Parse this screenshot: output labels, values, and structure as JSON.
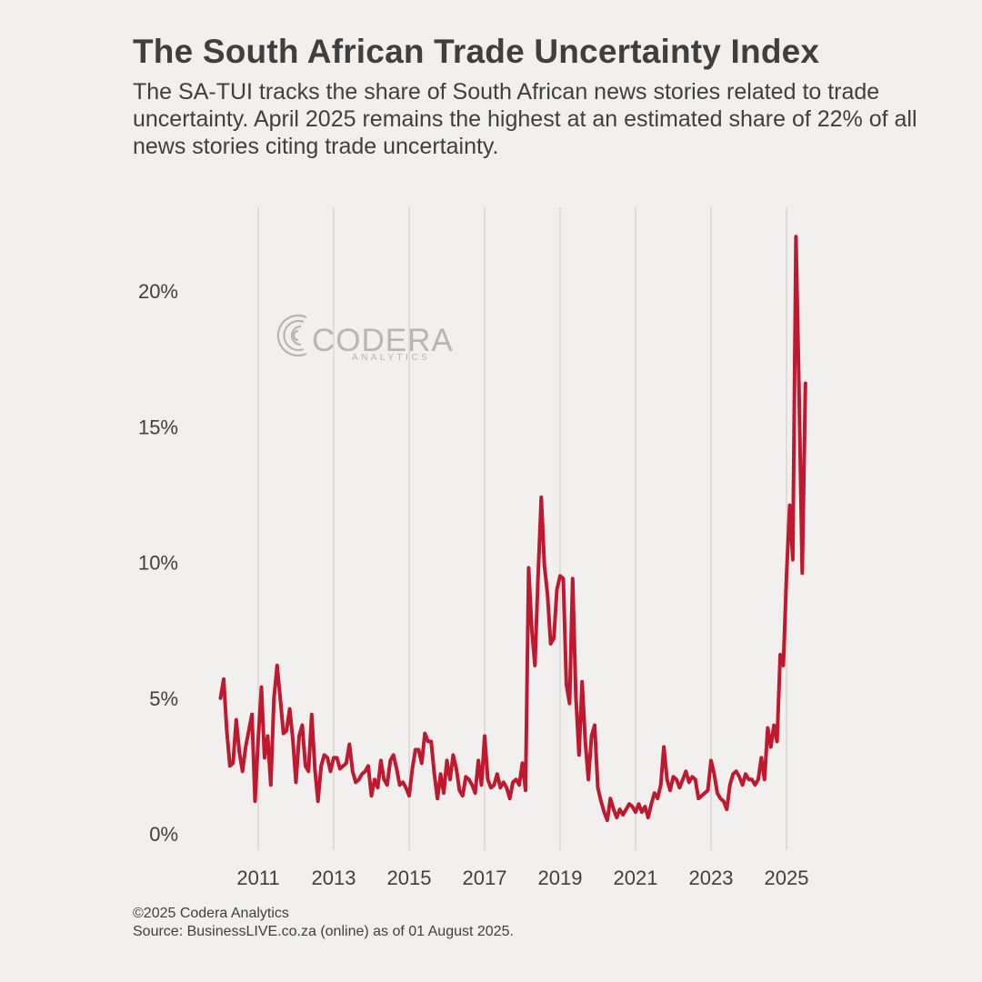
{
  "header": {
    "title": "The South African Trade Uncertainty Index",
    "subtitle": "The SA-TUI tracks the share of South African news stories related to trade uncertainty. April 2025 remains the highest at an estimated share of 22% of all news stories citing trade uncertainty."
  },
  "watermark": {
    "name": "CODERA",
    "tagline": "ANALYTICS"
  },
  "footer": {
    "copyright": "©2025 Codera Analytics",
    "source": "Source: BusinessLIVE.co.za (online) as of 01 August 2025."
  },
  "colors": {
    "background": "#f2f0ef",
    "line": "#c0182f",
    "grid": "#d9d6d4",
    "text": "#3f3f3f"
  },
  "chart_data": {
    "type": "line",
    "title": "The South African Trade Uncertainty Index",
    "xlabel": "",
    "ylabel": "",
    "x_ticks": [
      "2011",
      "2013",
      "2015",
      "2017",
      "2019",
      "2021",
      "2023",
      "2025"
    ],
    "y_ticks": [
      "0%",
      "5%",
      "10%",
      "15%",
      "20%"
    ],
    "ylim": [
      0,
      22.5
    ],
    "xlim": [
      "2009-10",
      "2026-02"
    ],
    "grid": "vertical",
    "legend": "none",
    "series": [
      {
        "points": [
          [
            "2010-01",
            5.0
          ],
          [
            "2010-02",
            5.7
          ],
          [
            "2010-03",
            3.8
          ],
          [
            "2010-04",
            2.5
          ],
          [
            "2010-05",
            2.6
          ],
          [
            "2010-06",
            4.2
          ],
          [
            "2010-07",
            3.0
          ],
          [
            "2010-08",
            2.3
          ],
          [
            "2010-09",
            3.2
          ],
          [
            "2010-10",
            3.8
          ],
          [
            "2010-11",
            4.4
          ],
          [
            "2010-12",
            1.2
          ],
          [
            "2011-01",
            3.5
          ],
          [
            "2011-02",
            5.4
          ],
          [
            "2011-03",
            2.8
          ],
          [
            "2011-04",
            3.6
          ],
          [
            "2011-05",
            1.8
          ],
          [
            "2011-06",
            5.0
          ],
          [
            "2011-07",
            6.2
          ],
          [
            "2011-08",
            5.0
          ],
          [
            "2011-09",
            3.7
          ],
          [
            "2011-10",
            3.8
          ],
          [
            "2011-11",
            4.6
          ],
          [
            "2011-12",
            3.5
          ],
          [
            "2012-01",
            1.9
          ],
          [
            "2012-02",
            3.6
          ],
          [
            "2012-03",
            4.0
          ],
          [
            "2012-04",
            2.5
          ],
          [
            "2012-05",
            2.3
          ],
          [
            "2012-06",
            4.4
          ],
          [
            "2012-07",
            2.4
          ],
          [
            "2012-08",
            1.2
          ],
          [
            "2012-09",
            2.5
          ],
          [
            "2012-10",
            2.9
          ],
          [
            "2012-11",
            2.8
          ],
          [
            "2012-12",
            2.3
          ],
          [
            "2013-01",
            2.8
          ],
          [
            "2013-02",
            2.8
          ],
          [
            "2013-03",
            2.4
          ],
          [
            "2013-04",
            2.5
          ],
          [
            "2013-05",
            2.6
          ],
          [
            "2013-06",
            3.3
          ],
          [
            "2013-07",
            2.3
          ],
          [
            "2013-08",
            1.9
          ],
          [
            "2013-09",
            2.0
          ],
          [
            "2013-10",
            2.2
          ],
          [
            "2013-11",
            2.3
          ],
          [
            "2013-12",
            2.5
          ],
          [
            "2014-01",
            1.4
          ],
          [
            "2014-02",
            2.0
          ],
          [
            "2014-03",
            1.7
          ],
          [
            "2014-04",
            2.7
          ],
          [
            "2014-05",
            2.0
          ],
          [
            "2014-06",
            1.8
          ],
          [
            "2014-07",
            2.7
          ],
          [
            "2014-08",
            2.9
          ],
          [
            "2014-09",
            2.4
          ],
          [
            "2014-10",
            1.8
          ],
          [
            "2014-11",
            1.9
          ],
          [
            "2014-12",
            1.7
          ],
          [
            "2015-01",
            1.4
          ],
          [
            "2015-02",
            2.4
          ],
          [
            "2015-03",
            3.1
          ],
          [
            "2015-04",
            3.1
          ],
          [
            "2015-05",
            2.6
          ],
          [
            "2015-06",
            3.7
          ],
          [
            "2015-07",
            3.4
          ],
          [
            "2015-08",
            3.4
          ],
          [
            "2015-09",
            2.2
          ],
          [
            "2015-10",
            1.3
          ],
          [
            "2015-11",
            2.2
          ],
          [
            "2015-12",
            1.5
          ],
          [
            "2016-01",
            2.7
          ],
          [
            "2016-02",
            2.0
          ],
          [
            "2016-03",
            2.9
          ],
          [
            "2016-04",
            2.4
          ],
          [
            "2016-05",
            1.6
          ],
          [
            "2016-06",
            1.4
          ],
          [
            "2016-07",
            2.1
          ],
          [
            "2016-08",
            2.0
          ],
          [
            "2016-09",
            1.8
          ],
          [
            "2016-10",
            1.5
          ],
          [
            "2016-11",
            2.7
          ],
          [
            "2016-12",
            1.8
          ],
          [
            "2017-01",
            3.6
          ],
          [
            "2017-02",
            2.0
          ],
          [
            "2017-03",
            1.7
          ],
          [
            "2017-04",
            1.8
          ],
          [
            "2017-05",
            2.2
          ],
          [
            "2017-06",
            1.7
          ],
          [
            "2017-07",
            1.9
          ],
          [
            "2017-08",
            1.7
          ],
          [
            "2017-09",
            1.3
          ],
          [
            "2017-10",
            1.9
          ],
          [
            "2017-11",
            2.0
          ],
          [
            "2017-12",
            1.8
          ],
          [
            "2018-01",
            2.6
          ],
          [
            "2018-02",
            1.6
          ],
          [
            "2018-03",
            9.8
          ],
          [
            "2018-04",
            7.5
          ],
          [
            "2018-05",
            6.2
          ],
          [
            "2018-06",
            9.5
          ],
          [
            "2018-07",
            12.4
          ],
          [
            "2018-08",
            9.9
          ],
          [
            "2018-09",
            8.8
          ],
          [
            "2018-10",
            7.0
          ],
          [
            "2018-11",
            7.2
          ],
          [
            "2018-12",
            9.0
          ],
          [
            "2019-01",
            9.5
          ],
          [
            "2019-02",
            9.4
          ],
          [
            "2019-03",
            5.5
          ],
          [
            "2019-04",
            4.8
          ],
          [
            "2019-05",
            9.4
          ],
          [
            "2019-06",
            5.1
          ],
          [
            "2019-07",
            2.9
          ],
          [
            "2019-08",
            5.6
          ],
          [
            "2019-09",
            3.4
          ],
          [
            "2019-10",
            2.0
          ],
          [
            "2019-11",
            3.6
          ],
          [
            "2019-12",
            4.0
          ],
          [
            "2020-01",
            1.7
          ],
          [
            "2020-02",
            1.2
          ],
          [
            "2020-03",
            0.8
          ],
          [
            "2020-04",
            0.5
          ],
          [
            "2020-05",
            1.3
          ],
          [
            "2020-06",
            0.9
          ],
          [
            "2020-07",
            0.6
          ],
          [
            "2020-08",
            0.9
          ],
          [
            "2020-09",
            0.7
          ],
          [
            "2020-10",
            0.9
          ],
          [
            "2020-11",
            1.1
          ],
          [
            "2020-12",
            1.0
          ],
          [
            "2021-01",
            0.8
          ],
          [
            "2021-02",
            1.1
          ],
          [
            "2021-03",
            0.8
          ],
          [
            "2021-04",
            1.0
          ],
          [
            "2021-05",
            0.6
          ],
          [
            "2021-06",
            1.1
          ],
          [
            "2021-07",
            1.5
          ],
          [
            "2021-08",
            1.3
          ],
          [
            "2021-09",
            1.8
          ],
          [
            "2021-10",
            3.2
          ],
          [
            "2021-11",
            2.0
          ],
          [
            "2021-12",
            1.6
          ],
          [
            "2022-01",
            2.1
          ],
          [
            "2022-02",
            2.0
          ],
          [
            "2022-03",
            1.7
          ],
          [
            "2022-04",
            2.0
          ],
          [
            "2022-05",
            2.3
          ],
          [
            "2022-06",
            1.9
          ],
          [
            "2022-07",
            2.1
          ],
          [
            "2022-08",
            2.0
          ],
          [
            "2022-09",
            1.3
          ],
          [
            "2022-10",
            1.4
          ],
          [
            "2022-11",
            1.5
          ],
          [
            "2022-12",
            1.6
          ],
          [
            "2023-01",
            2.7
          ],
          [
            "2023-02",
            2.2
          ],
          [
            "2023-03",
            1.5
          ],
          [
            "2023-04",
            1.3
          ],
          [
            "2023-05",
            1.2
          ],
          [
            "2023-06",
            0.9
          ],
          [
            "2023-07",
            1.8
          ],
          [
            "2023-08",
            2.2
          ],
          [
            "2023-09",
            2.3
          ],
          [
            "2023-10",
            2.1
          ],
          [
            "2023-11",
            1.8
          ],
          [
            "2023-12",
            2.2
          ],
          [
            "2024-01",
            2.0
          ],
          [
            "2024-02",
            2.0
          ],
          [
            "2024-03",
            1.8
          ],
          [
            "2024-04",
            2.0
          ],
          [
            "2024-05",
            2.8
          ],
          [
            "2024-06",
            2.0
          ],
          [
            "2024-07",
            3.9
          ],
          [
            "2024-08",
            3.2
          ],
          [
            "2024-09",
            4.0
          ],
          [
            "2024-10",
            3.4
          ],
          [
            "2024-11",
            6.6
          ],
          [
            "2024-12",
            6.2
          ],
          [
            "2025-01",
            9.5
          ],
          [
            "2025-02",
            12.1
          ],
          [
            "2025-03",
            10.1
          ],
          [
            "2025-04",
            22.0
          ],
          [
            "2025-05",
            16.3
          ],
          [
            "2025-06",
            9.6
          ],
          [
            "2025-07",
            16.6
          ]
        ]
      }
    ]
  }
}
